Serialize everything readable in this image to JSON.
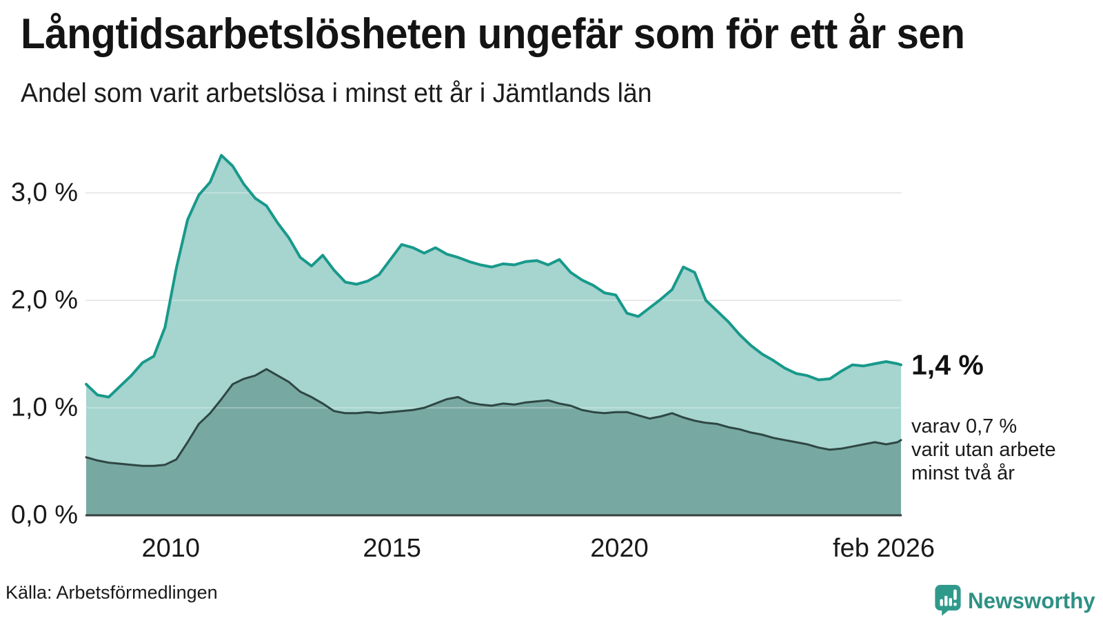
{
  "header": {
    "title": "Långtidsarbetslösheten ungefär som för ett år sen",
    "subtitle": "Andel som varit arbetslösa i minst ett år i Jämtlands län"
  },
  "chart_data": {
    "type": "area",
    "title": "Långtidsarbetslösheten ungefär som för ett år sen",
    "subtitle": "Andel som varit arbetslösa i minst ett år i Jämtlands län",
    "unit": "%",
    "grid": "horizontal",
    "legend_position": "none",
    "xlim": [
      2008,
      2026.08
    ],
    "ylim": [
      0,
      3.45
    ],
    "x": [
      2008,
      2008.25,
      2008.5,
      2008.75,
      2009,
      2009.25,
      2009.5,
      2009.75,
      2010,
      2010.25,
      2010.5,
      2010.75,
      2011,
      2011.25,
      2011.5,
      2011.75,
      2012,
      2012.25,
      2012.5,
      2012.75,
      2013,
      2013.25,
      2013.5,
      2013.75,
      2014,
      2014.25,
      2014.5,
      2014.75,
      2015,
      2015.25,
      2015.5,
      2015.75,
      2016,
      2016.25,
      2016.5,
      2016.75,
      2017,
      2017.25,
      2017.5,
      2017.75,
      2018,
      2018.25,
      2018.5,
      2018.75,
      2019,
      2019.25,
      2019.5,
      2019.75,
      2020,
      2020.25,
      2020.5,
      2020.75,
      2021,
      2021.25,
      2021.5,
      2021.75,
      2022,
      2022.25,
      2022.5,
      2022.75,
      2023,
      2023.25,
      2023.5,
      2023.75,
      2024,
      2024.25,
      2024.5,
      2024.75,
      2025,
      2025.25,
      2025.5,
      2025.75,
      2026,
      2026.08
    ],
    "series": [
      {
        "name": "Andel arbetslösa minst ett år",
        "line_color": "#18998b",
        "fill_color": "#a6d4ce",
        "line_width": 4,
        "values": [
          1.22,
          1.12,
          1.1,
          1.2,
          1.3,
          1.42,
          1.48,
          1.75,
          2.3,
          2.75,
          2.98,
          3.1,
          3.35,
          3.25,
          3.08,
          2.95,
          2.88,
          2.72,
          2.58,
          2.4,
          2.32,
          2.42,
          2.28,
          2.17,
          2.15,
          2.18,
          2.24,
          2.38,
          2.52,
          2.49,
          2.44,
          2.49,
          2.43,
          2.4,
          2.36,
          2.33,
          2.31,
          2.34,
          2.33,
          2.36,
          2.37,
          2.33,
          2.38,
          2.26,
          2.19,
          2.14,
          2.07,
          2.05,
          1.88,
          1.85,
          1.93,
          2.01,
          2.1,
          2.31,
          2.26,
          2.0,
          1.9,
          1.8,
          1.68,
          1.58,
          1.5,
          1.44,
          1.37,
          1.32,
          1.3,
          1.26,
          1.27,
          1.34,
          1.4,
          1.39,
          1.41,
          1.43,
          1.41,
          1.4
        ]
      },
      {
        "name": "Andel arbetslösa minst två år",
        "line_color": "#2e4744",
        "fill_color": "#78a8a2",
        "line_width": 3,
        "values": [
          0.54,
          0.51,
          0.49,
          0.48,
          0.47,
          0.46,
          0.46,
          0.47,
          0.52,
          0.68,
          0.85,
          0.95,
          1.08,
          1.22,
          1.27,
          1.3,
          1.36,
          1.3,
          1.24,
          1.15,
          1.1,
          1.04,
          0.97,
          0.95,
          0.95,
          0.96,
          0.95,
          0.96,
          0.97,
          0.98,
          1.0,
          1.04,
          1.08,
          1.1,
          1.05,
          1.03,
          1.02,
          1.04,
          1.03,
          1.05,
          1.06,
          1.07,
          1.04,
          1.02,
          0.98,
          0.96,
          0.95,
          0.96,
          0.96,
          0.93,
          0.9,
          0.92,
          0.95,
          0.91,
          0.88,
          0.86,
          0.85,
          0.82,
          0.8,
          0.77,
          0.75,
          0.72,
          0.7,
          0.68,
          0.66,
          0.63,
          0.61,
          0.62,
          0.64,
          0.66,
          0.68,
          0.66,
          0.68,
          0.7
        ]
      }
    ],
    "yticks": [
      {
        "value": 3,
        "label": "3,0 %"
      },
      {
        "value": 2,
        "label": "2,0 %"
      },
      {
        "value": 1,
        "label": "1,0 %"
      },
      {
        "value": 0,
        "label": "0,0 %"
      }
    ],
    "xticks": [
      {
        "value": 2010,
        "label": "2010",
        "dx": -8
      },
      {
        "value": 2015,
        "label": "2015",
        "dx": -14
      },
      {
        "value": 2020,
        "label": "2020",
        "dx": -11
      },
      {
        "value": 2026.08,
        "label": "feb 2026",
        "dx": -25
      }
    ],
    "end_labels": {
      "primary": "1,4 %",
      "secondary_lines": [
        "varav 0,7 %",
        "varit utan arbete",
        "minst två år"
      ]
    },
    "colors": {
      "grid": "#e2e2e6",
      "axis": "#37403e",
      "accent": "#18998b"
    }
  },
  "footer": {
    "source": "Källa: Arbetsförmedlingen",
    "brand": "Newsworthy",
    "brand_color": "#2e9183",
    "brand_icon_color": "#2f9a8c"
  }
}
